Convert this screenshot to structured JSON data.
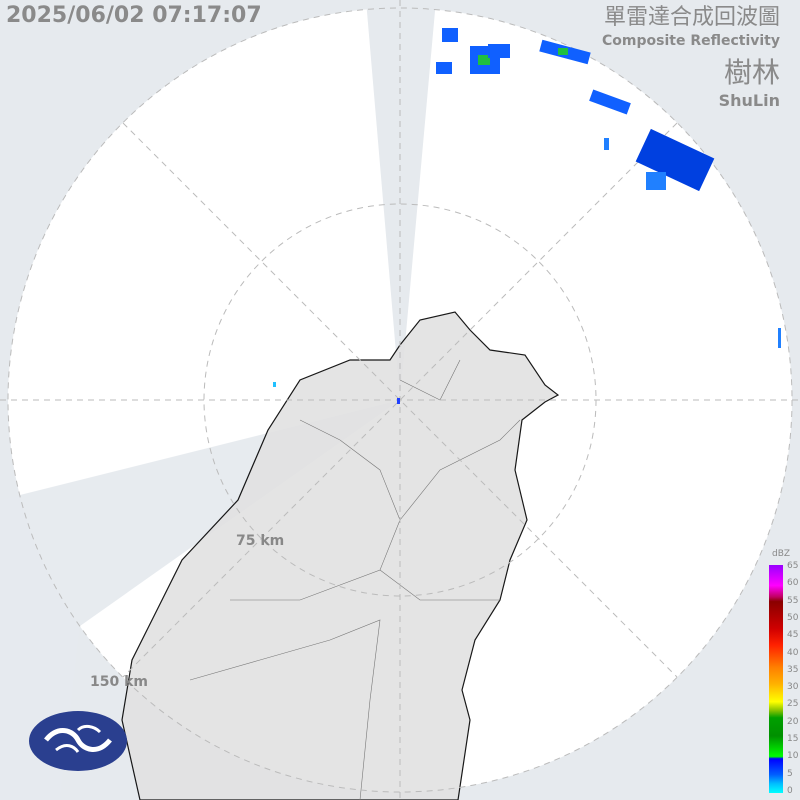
{
  "timestamp": "2025/06/02 07:17:07",
  "title_zh": "單雷達合成回波圖",
  "title_en": "Composite Reflectivity",
  "station_zh": "樹林",
  "station_en": "ShuLin",
  "rings": [
    "75 km",
    "150 km"
  ],
  "legend": {
    "unit": "dBZ",
    "ticks": [
      "65",
      "60",
      "55",
      "50",
      "45",
      "40",
      "35",
      "30",
      "25",
      "20",
      "15",
      "10",
      "5",
      "0"
    ]
  },
  "colors": {
    "background": "#e6eaee",
    "radar_area": "#ffffff",
    "land": "#e4e4e4",
    "echo": "#1060ff",
    "logo": "#2a3f8f"
  },
  "icons": {
    "logo": "cwa-logo"
  }
}
